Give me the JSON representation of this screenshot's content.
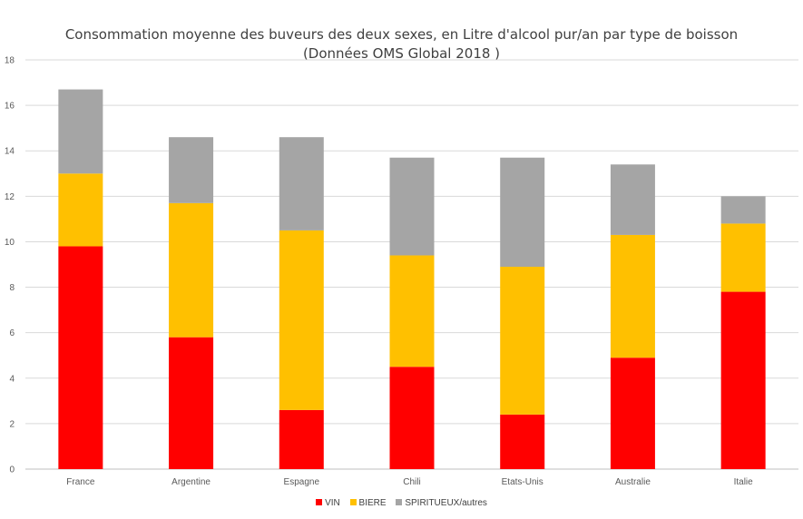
{
  "chart_data": {
    "type": "bar",
    "stacked": true,
    "title": "Consommation moyenne des buveurs des deux sexes, en Litre d'alcool pur/an  par type de boisson",
    "subtitle": "(Données OMS Global 2018 )",
    "xlabel": "",
    "ylabel": "",
    "ylim": [
      0,
      18
    ],
    "yticks": [
      0,
      2,
      4,
      6,
      8,
      10,
      12,
      14,
      16,
      18
    ],
    "grid": true,
    "legend_position": "bottom",
    "categories": [
      "France",
      "Argentine",
      "Espagne",
      "Chili",
      "Etats-Unis",
      "Australie",
      "Italie"
    ],
    "series": [
      {
        "name": "VIN",
        "color": "#FF0000",
        "values": [
          9.8,
          5.8,
          2.6,
          4.5,
          2.4,
          4.9,
          7.8
        ]
      },
      {
        "name": "BIERE",
        "color": "#FFC000",
        "values": [
          3.2,
          5.9,
          7.9,
          4.9,
          6.5,
          5.4,
          3.0
        ]
      },
      {
        "name": "SPIRITUEUX/autres",
        "color": "#A5A5A5",
        "values": [
          3.7,
          2.9,
          4.1,
          4.3,
          4.8,
          3.1,
          1.2
        ]
      }
    ]
  }
}
